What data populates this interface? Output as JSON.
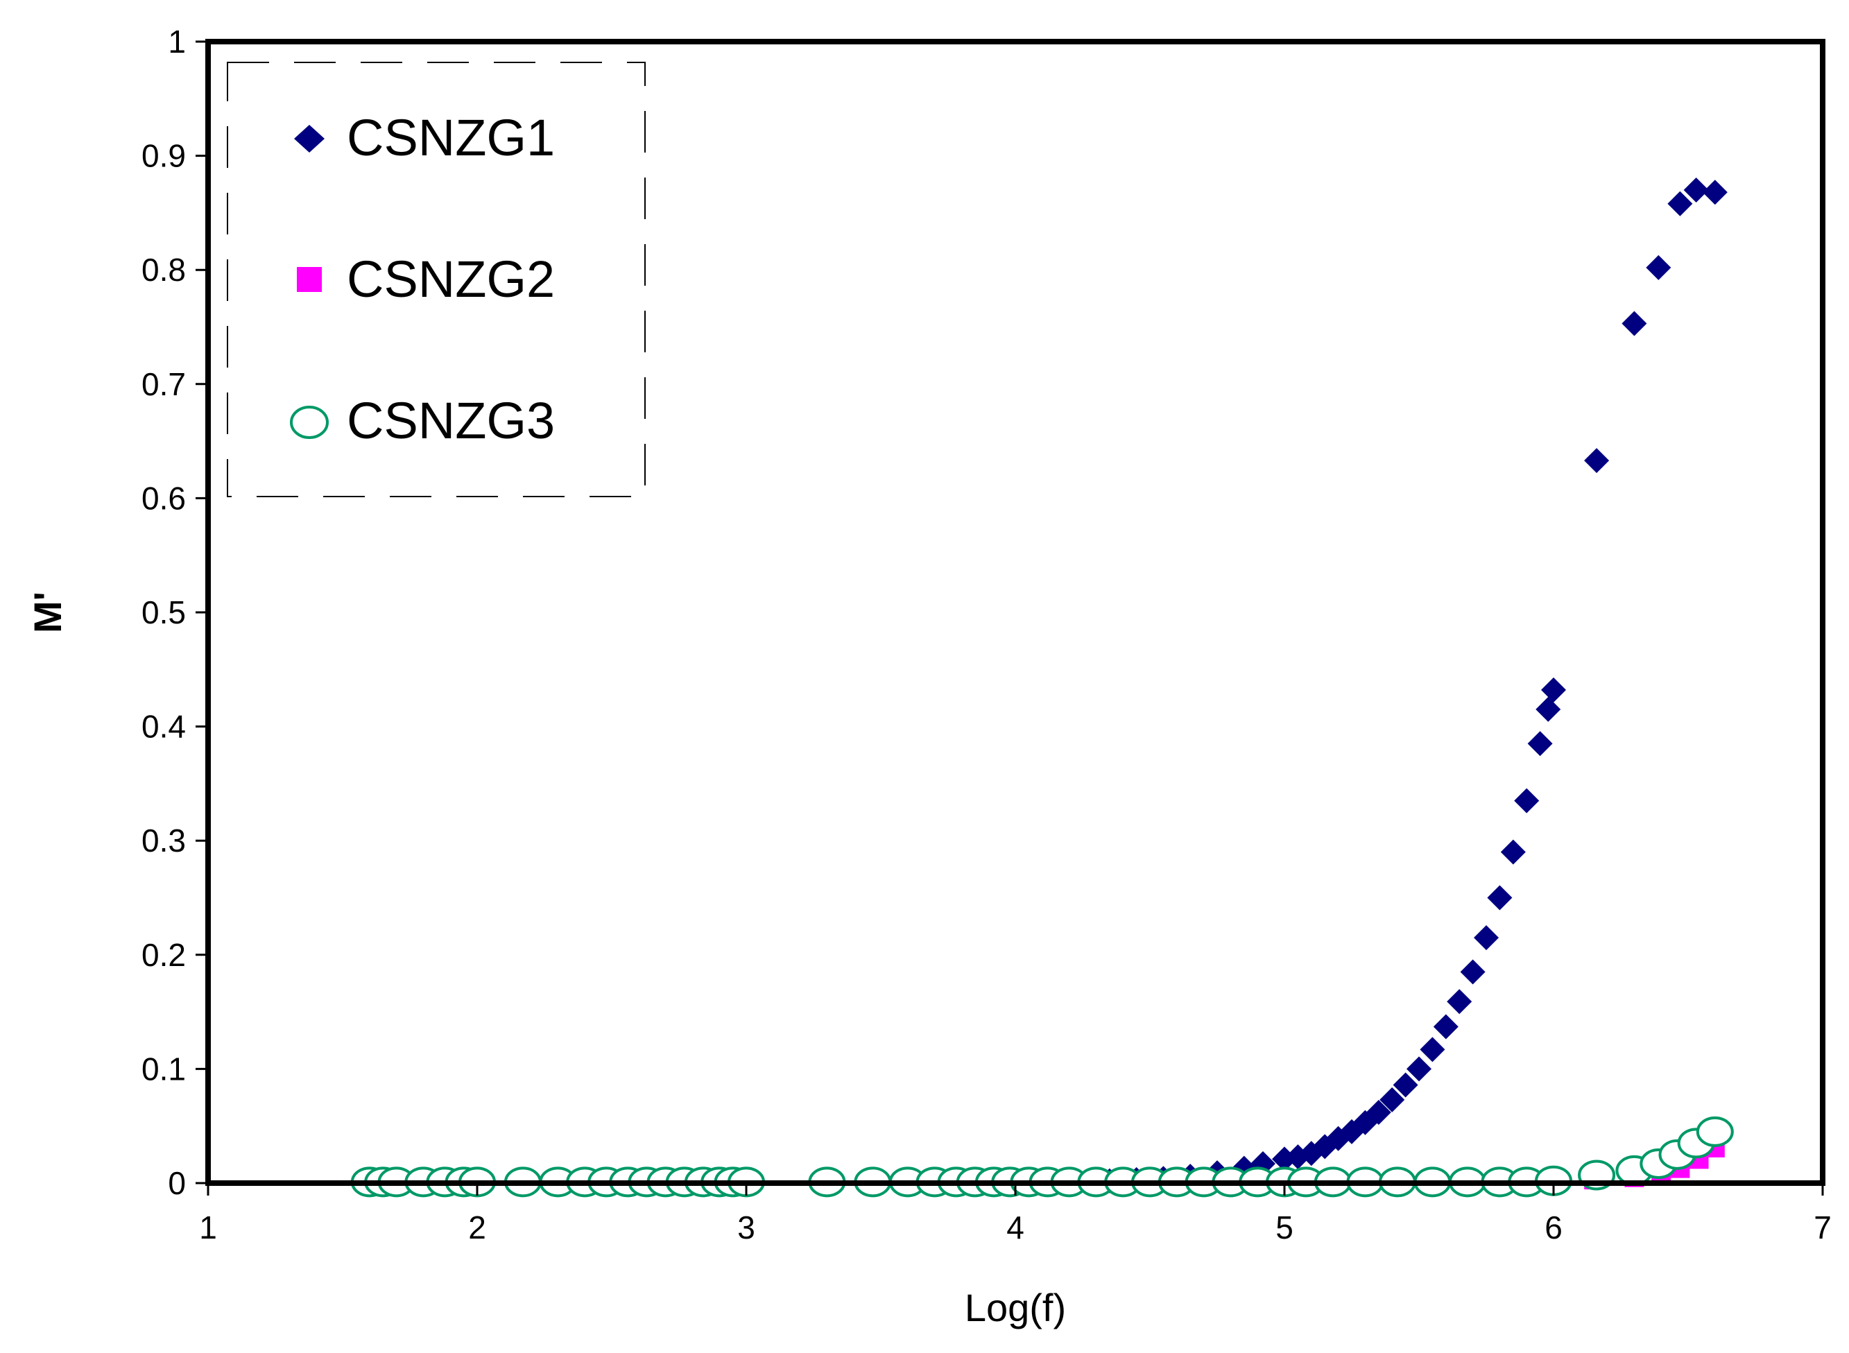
{
  "chart_data": {
    "type": "scatter",
    "title": "",
    "xlabel": "Log(f)",
    "ylabel": "M'",
    "xlim": [
      1,
      7
    ],
    "ylim": [
      0,
      1
    ],
    "xticks": [
      "1",
      "2",
      "3",
      "4",
      "5",
      "6",
      "7"
    ],
    "yticks": [
      "0",
      "0.1",
      "0.2",
      "0.3",
      "0.4",
      "0.5",
      "0.6",
      "0.7",
      "0.8",
      "0.9",
      "1"
    ],
    "grid": false,
    "legend_position": "top-left",
    "series": [
      {
        "name": "CSNZG1",
        "marker": "diamond",
        "color": "#000080",
        "points": [
          [
            4.35,
            0.002
          ],
          [
            4.45,
            0.003
          ],
          [
            4.55,
            0.004
          ],
          [
            4.65,
            0.006
          ],
          [
            4.75,
            0.009
          ],
          [
            4.85,
            0.013
          ],
          [
            4.92,
            0.017
          ],
          [
            5.0,
            0.021
          ],
          [
            5.05,
            0.023
          ],
          [
            5.1,
            0.026
          ],
          [
            5.15,
            0.032
          ],
          [
            5.2,
            0.039
          ],
          [
            5.25,
            0.045
          ],
          [
            5.3,
            0.053
          ],
          [
            5.35,
            0.062
          ],
          [
            5.4,
            0.073
          ],
          [
            5.45,
            0.086
          ],
          [
            5.5,
            0.1
          ],
          [
            5.55,
            0.117
          ],
          [
            5.6,
            0.137
          ],
          [
            5.65,
            0.159
          ],
          [
            5.7,
            0.185
          ],
          [
            5.75,
            0.215
          ],
          [
            5.8,
            0.25
          ],
          [
            5.85,
            0.29
          ],
          [
            5.9,
            0.335
          ],
          [
            5.95,
            0.385
          ],
          [
            5.98,
            0.415
          ],
          [
            6.0,
            0.432
          ],
          [
            6.16,
            0.633
          ],
          [
            6.3,
            0.753
          ],
          [
            6.39,
            0.802
          ],
          [
            6.47,
            0.858
          ],
          [
            6.53,
            0.87
          ],
          [
            6.6,
            0.868
          ]
        ]
      },
      {
        "name": "CSNZG2",
        "marker": "square",
        "color": "#FF00FF",
        "points": [
          [
            6.15,
            0.003
          ],
          [
            6.3,
            0.005
          ],
          [
            6.4,
            0.008
          ],
          [
            6.47,
            0.013
          ],
          [
            6.54,
            0.021
          ],
          [
            6.6,
            0.031
          ]
        ]
      },
      {
        "name": "CSNZG3",
        "marker": "circle",
        "color": "#009966",
        "points": [
          [
            1.6,
            0.001
          ],
          [
            1.65,
            0.001
          ],
          [
            1.7,
            0.001
          ],
          [
            1.8,
            0.001
          ],
          [
            1.88,
            0.001
          ],
          [
            1.95,
            0.001
          ],
          [
            2.0,
            0.001
          ],
          [
            2.17,
            0.001
          ],
          [
            2.3,
            0.001
          ],
          [
            2.4,
            0.001
          ],
          [
            2.48,
            0.001
          ],
          [
            2.56,
            0.001
          ],
          [
            2.63,
            0.001
          ],
          [
            2.7,
            0.001
          ],
          [
            2.77,
            0.001
          ],
          [
            2.84,
            0.001
          ],
          [
            2.9,
            0.001
          ],
          [
            2.95,
            0.001
          ],
          [
            3.0,
            0.001
          ],
          [
            3.3,
            0.001
          ],
          [
            3.47,
            0.001
          ],
          [
            3.6,
            0.001
          ],
          [
            3.7,
            0.001
          ],
          [
            3.78,
            0.001
          ],
          [
            3.85,
            0.001
          ],
          [
            3.92,
            0.001
          ],
          [
            3.98,
            0.001
          ],
          [
            4.05,
            0.001
          ],
          [
            4.12,
            0.001
          ],
          [
            4.2,
            0.001
          ],
          [
            4.3,
            0.001
          ],
          [
            4.4,
            0.001
          ],
          [
            4.5,
            0.001
          ],
          [
            4.6,
            0.001
          ],
          [
            4.7,
            0.001
          ],
          [
            4.8,
            0.001
          ],
          [
            4.9,
            0.001
          ],
          [
            5.0,
            0.001
          ],
          [
            5.08,
            0.001
          ],
          [
            5.18,
            0.001
          ],
          [
            5.3,
            0.001
          ],
          [
            5.42,
            0.001
          ],
          [
            5.55,
            0.001
          ],
          [
            5.68,
            0.001
          ],
          [
            5.8,
            0.001
          ],
          [
            5.9,
            0.001
          ],
          [
            6.0,
            0.002
          ],
          [
            6.16,
            0.007
          ],
          [
            6.3,
            0.011
          ],
          [
            6.39,
            0.017
          ],
          [
            6.46,
            0.025
          ],
          [
            6.53,
            0.035
          ],
          [
            6.6,
            0.045
          ]
        ]
      }
    ]
  }
}
